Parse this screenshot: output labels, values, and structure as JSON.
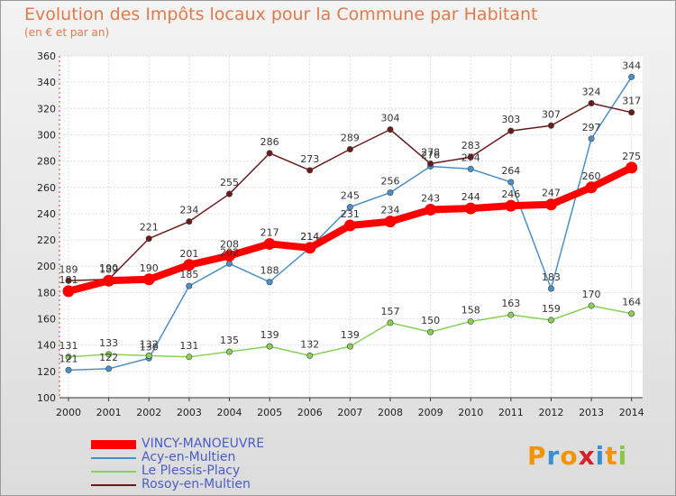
{
  "header": {
    "title": "Evolution des Impôts locaux pour la Commune par Habitant",
    "subtitle": "(en € et par an)"
  },
  "logo": {
    "text": "Proxiti",
    "colors": [
      "#f29400",
      "#3a8fd1",
      "#f29400",
      "#d6212a",
      "#3a8fd1",
      "#f29400",
      "#8cc63f"
    ]
  },
  "chart_data": {
    "type": "line",
    "x": [
      "2000",
      "2001",
      "2002",
      "2003",
      "2004",
      "2005",
      "2006",
      "2007",
      "2008",
      "2009",
      "2010",
      "2011",
      "2012",
      "2013",
      "2014"
    ],
    "ylim": [
      100,
      360
    ],
    "yticks": [
      100,
      120,
      140,
      160,
      180,
      200,
      220,
      240,
      260,
      280,
      300,
      320,
      340,
      360
    ],
    "grid": true,
    "legend_position": "bottom-left",
    "series": [
      {
        "name": "VINCY-MANOEUVRE",
        "color": "#ff0000",
        "values": [
          181,
          189,
          190,
          201,
          208,
          217,
          214,
          231,
          234,
          243,
          244,
          246,
          247,
          260,
          275
        ]
      },
      {
        "name": "Acy-en-Multien",
        "color": "#4a90c8",
        "values": [
          121,
          122,
          130,
          185,
          202,
          188,
          214,
          245,
          256,
          276,
          274,
          264,
          183,
          297,
          344
        ]
      },
      {
        "name": "Le Plessis-Placy",
        "color": "#88d058",
        "values": [
          131,
          133,
          132,
          131,
          135,
          139,
          132,
          139,
          157,
          150,
          158,
          163,
          159,
          170,
          164
        ]
      },
      {
        "name": "Rosoy-en-Multien",
        "color": "#6b1a1a",
        "values": [
          189,
          190,
          221,
          234,
          255,
          286,
          273,
          289,
          304,
          278,
          283,
          303,
          307,
          324,
          317
        ]
      }
    ]
  }
}
